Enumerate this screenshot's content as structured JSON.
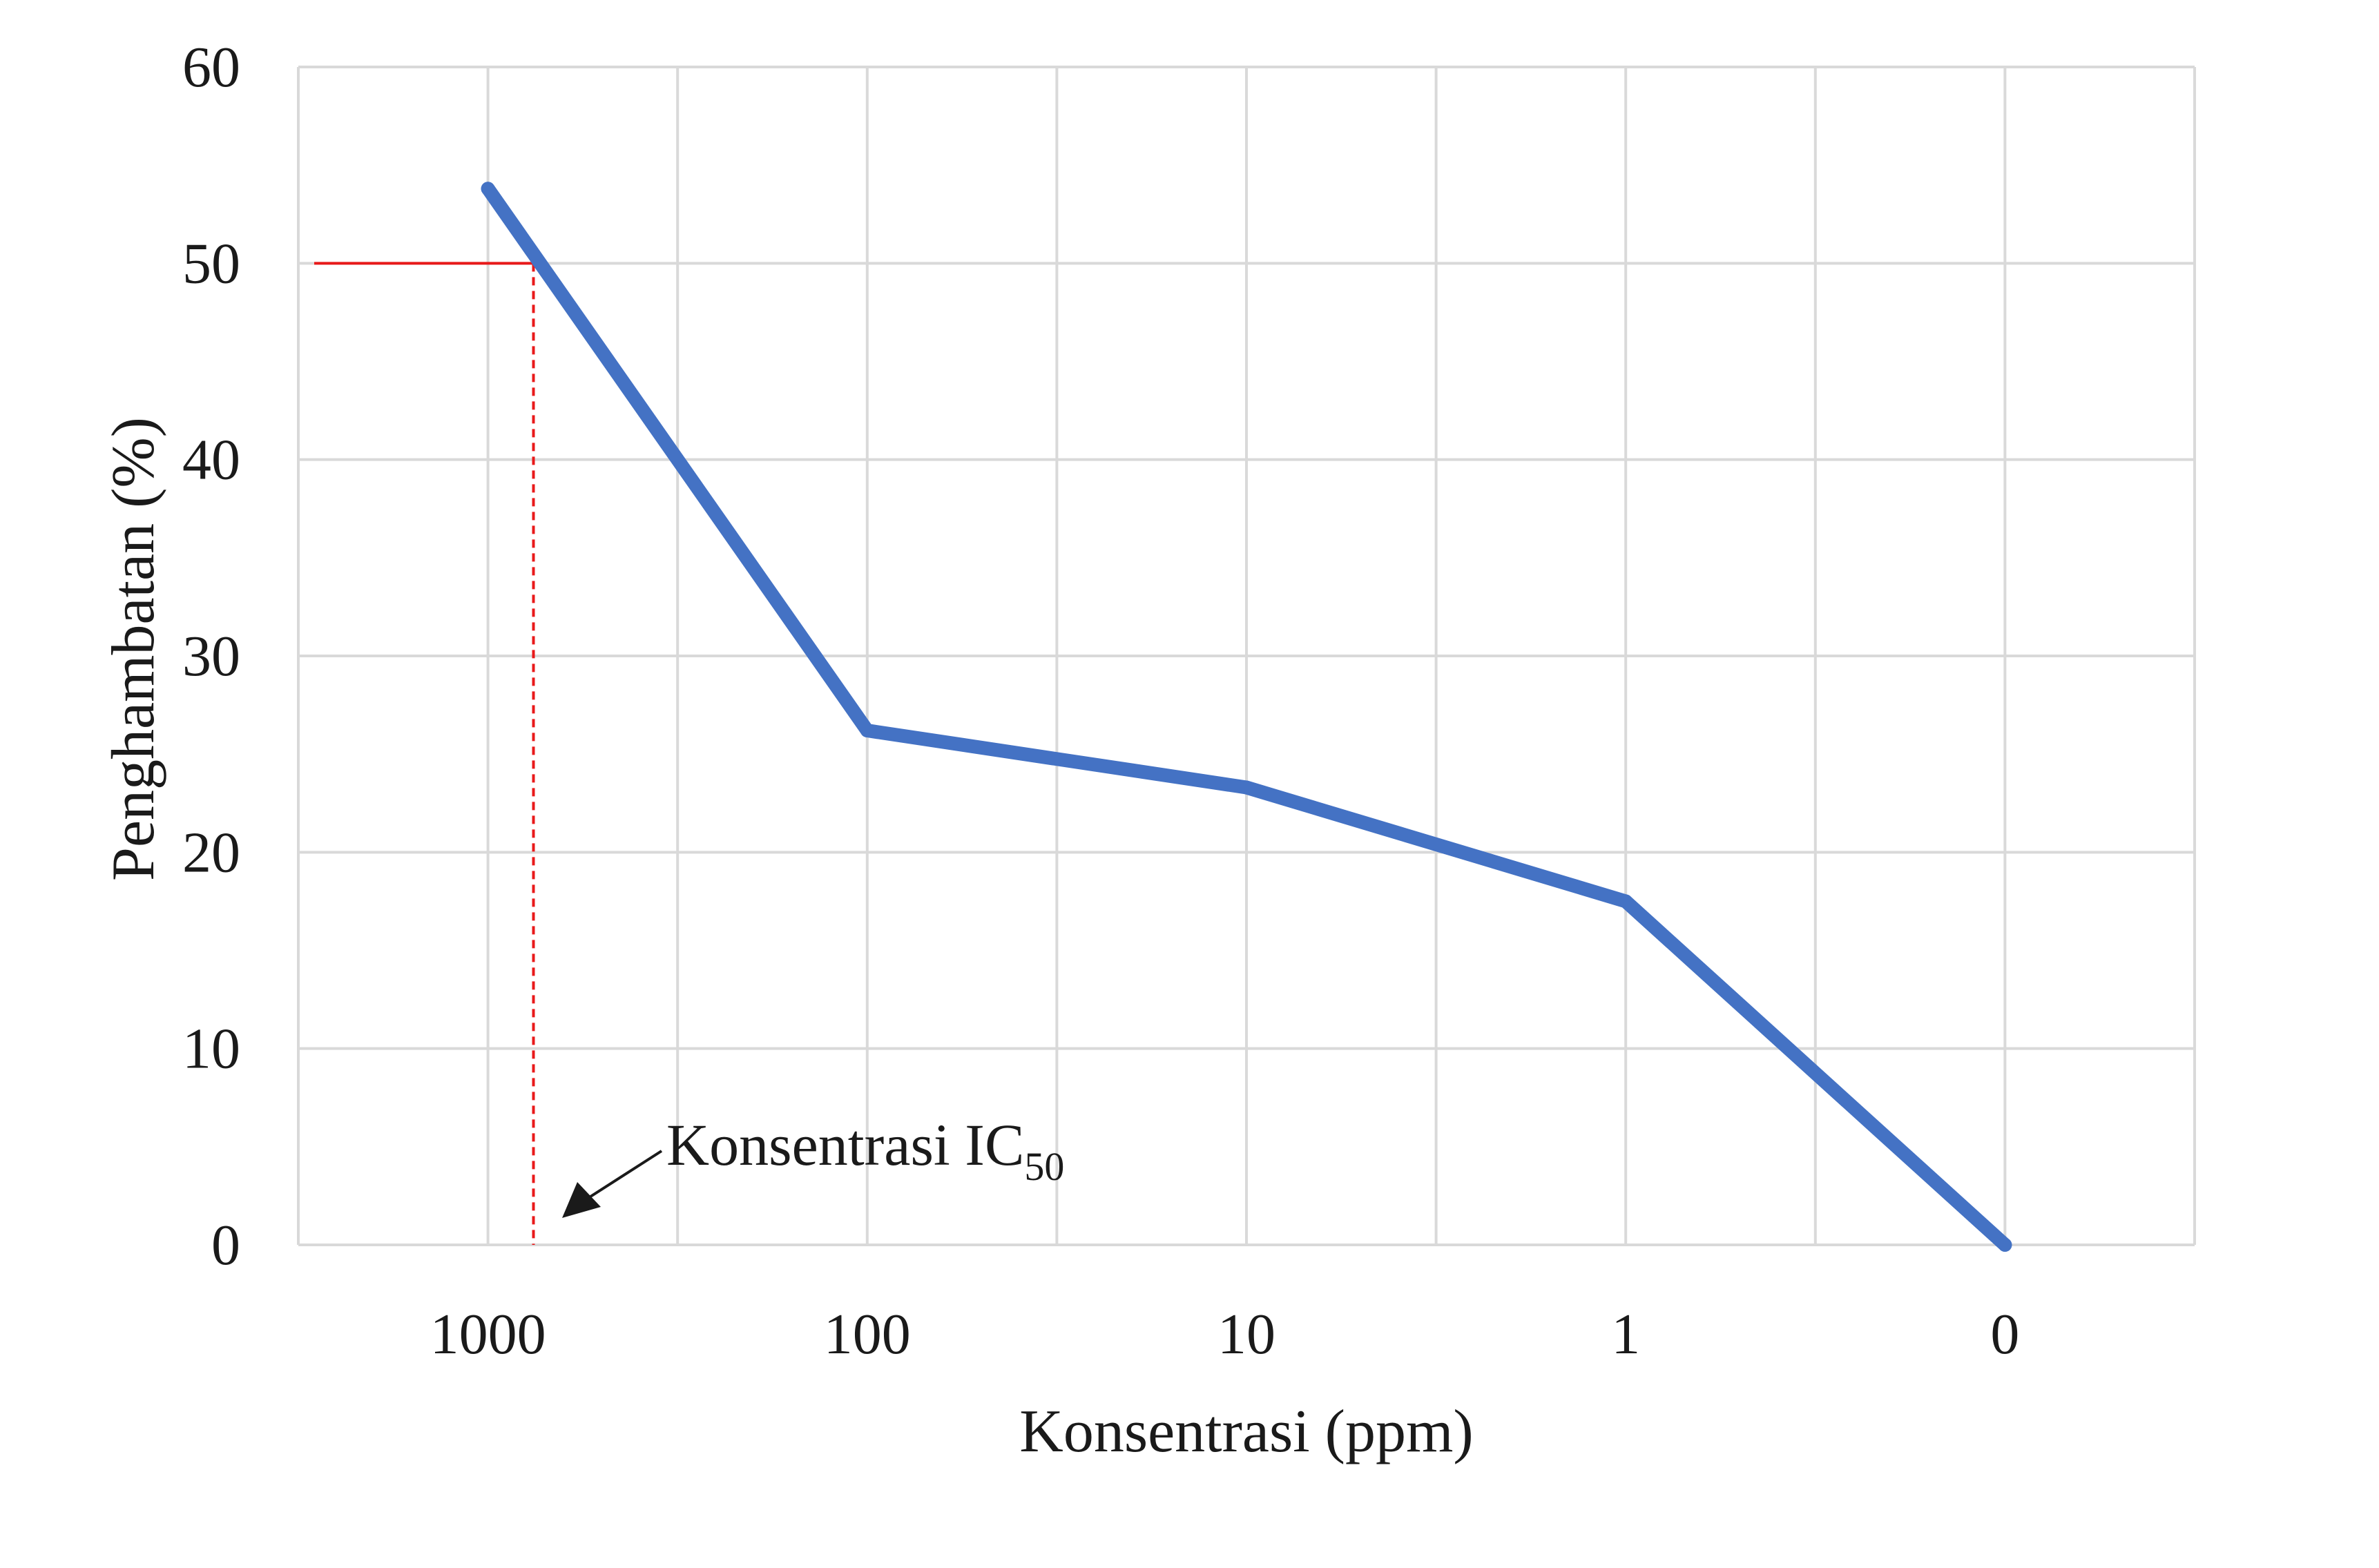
{
  "chart_data": {
    "type": "line",
    "title": "",
    "xlabel": "Konsentrasi (ppm)",
    "ylabel": "Penghambatan (%)",
    "x_categories": [
      "1000",
      "100",
      "10",
      "1",
      "0"
    ],
    "ylim": [
      0,
      60
    ],
    "y_ticks": [
      "0",
      "10",
      "20",
      "30",
      "40",
      "50",
      "60"
    ],
    "grid": true,
    "legend": "none",
    "series": [
      {
        "values": [
          53.8,
          26.2,
          23.3,
          17.5,
          0.0
        ],
        "color": "#4472C4"
      }
    ],
    "ic50_marker": {
      "y": 50,
      "x_category_position": 0.12,
      "color": "#E8191A"
    },
    "annotation": {
      "text": "Konsentrasi IC",
      "subscript": "50"
    }
  }
}
